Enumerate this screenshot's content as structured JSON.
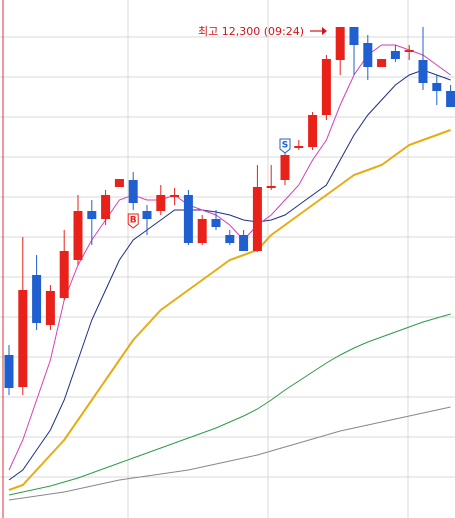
{
  "chart_data": {
    "type": "candlestick",
    "annotation": "최고 12,300 (09:24)",
    "buy_marker": "B",
    "sell_marker": "S",
    "up_color": "#e8211a",
    "down_color": "#1f5fcf",
    "ylim": [
      9845,
      12435
    ],
    "open": [
      10660,
      10500,
      11060,
      10810,
      10945,
      11135,
      11380,
      11340,
      11500,
      11535,
      11380,
      11380,
      11450,
      11460,
      11220,
      11340,
      11260,
      11260,
      11180,
      11495,
      11535,
      11695,
      11700,
      11860,
      12135,
      12300,
      12220,
      12100,
      12180,
      12175,
      12135,
      12020,
      11980
    ],
    "high": [
      10710,
      11250,
      11160,
      11010,
      11285,
      11460,
      11435,
      11485,
      11540,
      11575,
      11410,
      11510,
      11495,
      11485,
      11360,
      11385,
      11285,
      11285,
      11610,
      11610,
      11695,
      11735,
      11875,
      12160,
      12300,
      12300,
      12260,
      12140,
      12210,
      12210,
      12300,
      12060,
      12010
    ],
    "low": [
      10460,
      10460,
      10785,
      10785,
      10935,
      11110,
      11210,
      11310,
      11500,
      11385,
      11260,
      11360,
      11410,
      11210,
      11210,
      11285,
      11210,
      11180,
      11175,
      11485,
      11510,
      11685,
      11685,
      11835,
      12060,
      12060,
      12035,
      12100,
      12125,
      12135,
      11985,
      11910,
      11900
    ],
    "close": [
      10495,
      10985,
      10820,
      10980,
      11180,
      11380,
      11340,
      11460,
      11540,
      11420,
      11340,
      11460,
      11460,
      11220,
      11340,
      11300,
      11220,
      11180,
      11500,
      11505,
      11660,
      11705,
      11860,
      12140,
      12300,
      12210,
      12100,
      12140,
      12140,
      12185,
      12020,
      11980,
      11900
    ],
    "series": [
      {
        "color": "#888888",
        "values": [
          9935,
          9945,
          9955,
          9965,
          9975,
          9990,
          10005,
          10020,
          10035,
          10045,
          10055,
          10065,
          10075,
          10085,
          10100,
          10115,
          10130,
          10145,
          10160,
          10180,
          10200,
          10220,
          10240,
          10260,
          10280,
          10295,
          10310,
          10325,
          10340,
          10355,
          10370,
          10385,
          10400
        ]
      },
      {
        "color": "#2e9a4a",
        "values": [
          9960,
          9975,
          9990,
          10005,
          10025,
          10045,
          10070,
          10095,
          10120,
          10145,
          10170,
          10195,
          10220,
          10245,
          10270,
          10295,
          10325,
          10355,
          10390,
          10435,
          10485,
          10530,
          10575,
          10620,
          10660,
          10695,
          10725,
          10750,
          10775,
          10800,
          10825,
          10845,
          10865
        ]
      },
      {
        "color": "#e8ac12",
        "values": [
          9985,
          10010,
          10085,
          10160,
          10235,
          10335,
          10435,
          10535,
          10635,
          10735,
          10810,
          10885,
          10935,
          10985,
          11035,
          11085,
          11135,
          11160,
          11185,
          11260,
          11310,
          11360,
          11410,
          11460,
          11510,
          11560,
          11585,
          11610,
          11660,
          11710,
          11735,
          11760,
          11785
        ]
      },
      {
        "color": "#1c2e8c",
        "values": [
          10035,
          10085,
          10185,
          10285,
          10435,
          10635,
          10835,
          10985,
          11135,
          11235,
          11285,
          11335,
          11385,
          11385,
          11385,
          11375,
          11360,
          11335,
          11325,
          11335,
          11360,
          11410,
          11460,
          11510,
          11635,
          11760,
          11860,
          11935,
          12010,
          12060,
          12085,
          12060,
          12035
        ]
      },
      {
        "color": "#d63fb8",
        "values": [
          10085,
          10235,
          10435,
          10635,
          10935,
          11110,
          11235,
          11335,
          11435,
          11460,
          11435,
          11435,
          11460,
          11410,
          11385,
          11360,
          11310,
          11235,
          11310,
          11360,
          11435,
          11510,
          11635,
          11735,
          11910,
          12060,
          12160,
          12210,
          12210,
          12185,
          12160,
          12110,
          12060
        ]
      }
    ]
  }
}
